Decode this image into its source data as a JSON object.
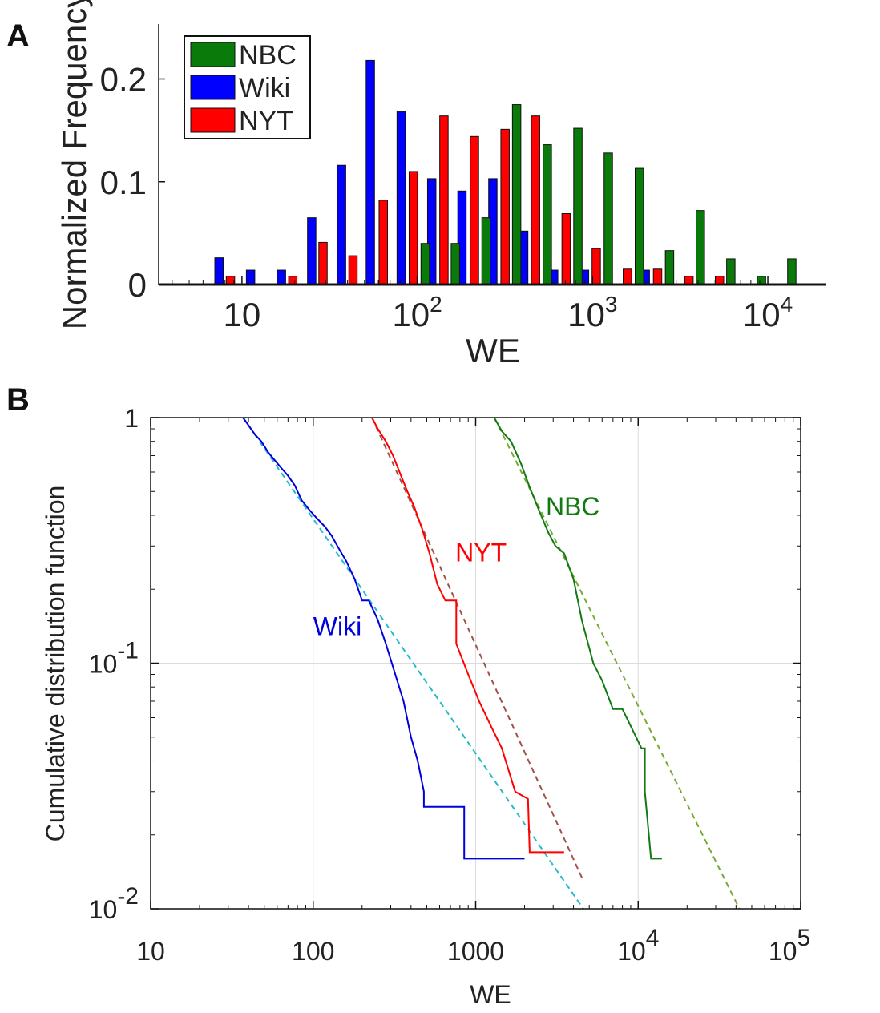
{
  "chart_data": [
    {
      "panel_label": "A",
      "type": "bar",
      "xscale": "log",
      "xlabel": "WE",
      "ylabel": "Normalized Frequency",
      "xlim": [
        3.8,
        17000
      ],
      "ylim": [
        0,
        0.25
      ],
      "xticks": [
        {
          "value": 10,
          "base": "10",
          "exp": ""
        },
        {
          "value": 100,
          "base": "10",
          "exp": "2"
        },
        {
          "value": 1000,
          "base": "10",
          "exp": "3"
        },
        {
          "value": 10000,
          "base": "10",
          "exp": "4"
        }
      ],
      "yticks": [
        {
          "value": 0,
          "label": "0"
        },
        {
          "value": 0.1,
          "label": "0.1"
        },
        {
          "value": 0.2,
          "label": "0.2"
        }
      ],
      "legend": {
        "position": "top-left",
        "entries": [
          {
            "name": "NBC",
            "color": "#0a7a0a"
          },
          {
            "name": "Wiki",
            "color": "#0000ff"
          },
          {
            "name": "NYT",
            "color": "#ff0000"
          }
        ]
      },
      "bar_width_decades": 0.048,
      "series": [
        {
          "name": "Wiki",
          "color": "#0000ff",
          "x": [
            7.4,
            11.2,
            16.8,
            25,
            37,
            54,
            81,
            121,
            180,
            270,
            405,
            600,
            900,
            1350,
            2000
          ],
          "values": [
            0.026,
            0.014,
            0.014,
            0.065,
            0.116,
            0.218,
            0.168,
            0.103,
            0.091,
            0.103,
            0.052,
            0.014,
            0.014,
            0.0,
            0.014
          ]
        },
        {
          "name": "NYT",
          "color": "#ff0000",
          "x": [
            8.6,
            19.5,
            29,
            43,
            64,
            95,
            142,
            212,
            317,
            473,
            707,
            1050,
            1580,
            2350,
            3550,
            5300
          ],
          "values": [
            0.008,
            0.008,
            0.041,
            0.028,
            0.082,
            0.11,
            0.164,
            0.144,
            0.151,
            0.164,
            0.069,
            0.035,
            0.015,
            0.015,
            0.008,
            0.008
          ]
        },
        {
          "name": "NBC",
          "color": "#0a7a0a",
          "x": [
            111,
            165,
            247,
            369,
            552,
            825,
            1230,
            1850,
            2750,
            4120,
            6150,
            9200,
            13700
          ],
          "values": [
            0.04,
            0.04,
            0.065,
            0.175,
            0.136,
            0.152,
            0.128,
            0.113,
            0.033,
            0.072,
            0.025,
            0.008,
            0.025
          ]
        }
      ]
    },
    {
      "panel_label": "B",
      "type": "line",
      "xscale": "log",
      "yscale": "log",
      "xlabel": "WE",
      "ylabel": "Cumulative distribution function",
      "xlim": [
        10,
        100000
      ],
      "ylim": [
        0.01,
        1
      ],
      "grid": true,
      "xticks": [
        {
          "value": 10,
          "base": "10",
          "exp": ""
        },
        {
          "value": 100,
          "base": "100",
          "exp": ""
        },
        {
          "value": 1000,
          "base": "1000",
          "exp": ""
        },
        {
          "value": 10000,
          "base": "10",
          "exp": "4"
        },
        {
          "value": 100000,
          "base": "10",
          "exp": "5"
        }
      ],
      "yticks": [
        {
          "value": 1,
          "base": "1",
          "exp": ""
        },
        {
          "value": 0.1,
          "base": "10",
          "exp": "-1"
        },
        {
          "value": 0.01,
          "base": "10",
          "exp": "-2"
        }
      ],
      "series": [
        {
          "name": "Wiki",
          "label": "Wiki",
          "color": "#0000dd",
          "label_at": [
            100,
            0.13
          ],
          "x": [
            37,
            40,
            44,
            48,
            53,
            58,
            64,
            70,
            77,
            85,
            95,
            105,
            118,
            130,
            145,
            160,
            180,
            200,
            220,
            250,
            280,
            320,
            360,
            400,
            440,
            480,
            480,
            850,
            850,
            2000
          ],
          "y": [
            1.0,
            0.93,
            0.85,
            0.8,
            0.72,
            0.67,
            0.62,
            0.58,
            0.53,
            0.46,
            0.42,
            0.39,
            0.36,
            0.33,
            0.29,
            0.26,
            0.22,
            0.18,
            0.18,
            0.15,
            0.12,
            0.09,
            0.07,
            0.05,
            0.04,
            0.03,
            0.026,
            0.026,
            0.016,
            0.016
          ]
        },
        {
          "name": "NYT",
          "label": "NYT",
          "color": "#ff0000",
          "label_at": [
            750,
            0.26
          ],
          "x": [
            230,
            250,
            280,
            310,
            340,
            380,
            420,
            470,
            520,
            580,
            650,
            760,
            760,
            900,
            1050,
            1250,
            1450,
            1750,
            2100,
            2150,
            3500
          ],
          "y": [
            1.0,
            0.9,
            0.8,
            0.7,
            0.6,
            0.5,
            0.43,
            0.35,
            0.28,
            0.21,
            0.18,
            0.18,
            0.12,
            0.09,
            0.07,
            0.055,
            0.045,
            0.03,
            0.028,
            0.017,
            0.017
          ]
        },
        {
          "name": "NBC",
          "label": "NBC",
          "color": "#117a11",
          "label_at": [
            2700,
            0.4
          ],
          "x": [
            1300,
            1450,
            1650,
            1900,
            2150,
            2450,
            2800,
            3100,
            3500,
            4000,
            4500,
            5300,
            6000,
            7000,
            8000,
            10500,
            11000,
            11000,
            12000,
            14000
          ],
          "y": [
            1.0,
            0.88,
            0.8,
            0.65,
            0.52,
            0.42,
            0.34,
            0.3,
            0.28,
            0.22,
            0.15,
            0.1,
            0.085,
            0.065,
            0.065,
            0.045,
            0.045,
            0.03,
            0.016,
            0.016
          ]
        }
      ],
      "fits": [
        {
          "name": "Wiki fit",
          "color": "#22bbcc",
          "x": [
            37,
            4600
          ],
          "y": [
            1.0,
            0.01
          ]
        },
        {
          "name": "NYT fit",
          "color": "#a0524a",
          "x": [
            230,
            4600
          ],
          "y": [
            1.0,
            0.013
          ]
        },
        {
          "name": "NBC fit",
          "color": "#77aa33",
          "x": [
            1300,
            42000
          ],
          "y": [
            1.0,
            0.01
          ]
        }
      ]
    }
  ]
}
